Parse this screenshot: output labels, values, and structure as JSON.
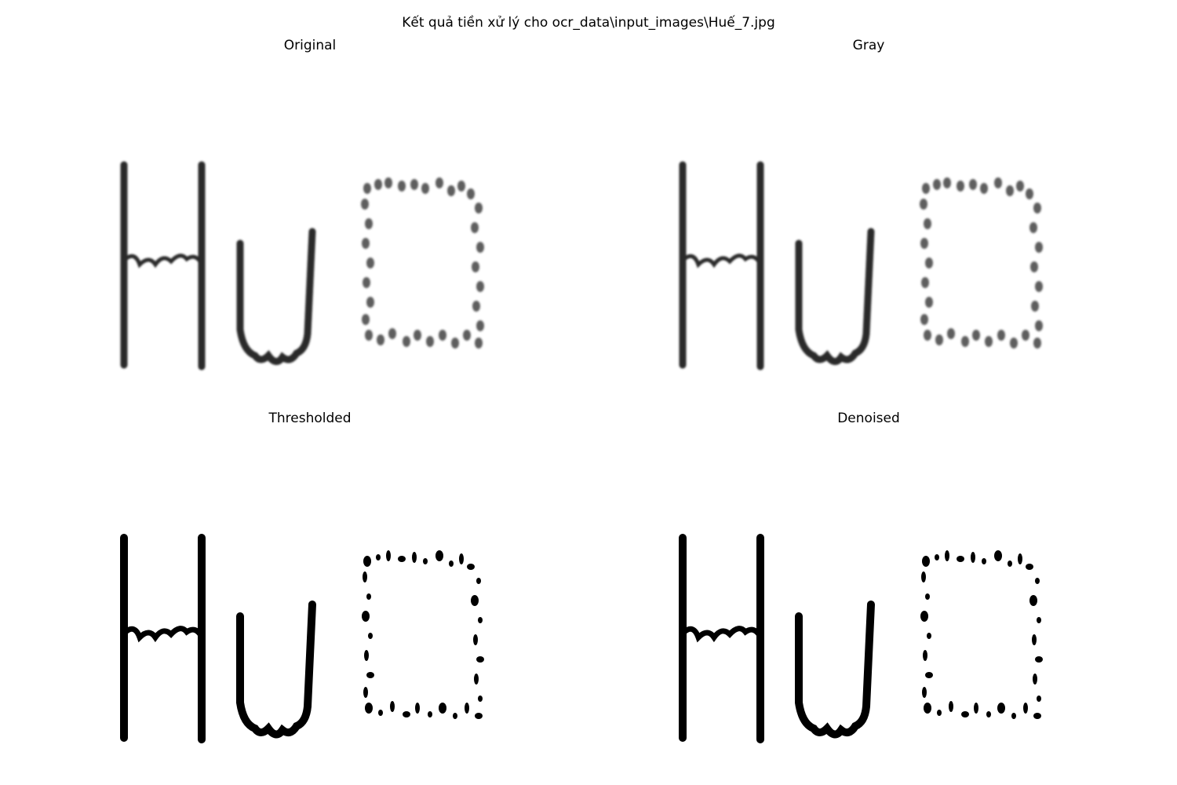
{
  "figure": {
    "title": "Kết quả tiền xử lý cho ocr_data\\input_images\\Huế_7.jpg"
  },
  "panels": [
    {
      "title": "Original",
      "style": "soft"
    },
    {
      "title": "Gray",
      "style": "soft"
    },
    {
      "title": "Thresholded",
      "style": "binary"
    },
    {
      "title": "Denoised",
      "style": "binary"
    }
  ],
  "image_text": "Huế"
}
